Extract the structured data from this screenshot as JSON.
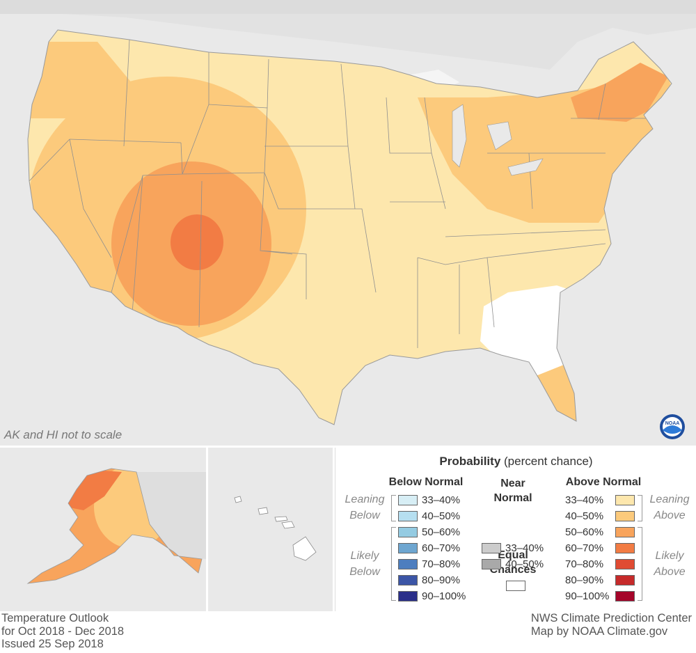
{
  "map": {
    "scale_note": "AK and HI not to scale",
    "logo_text": "NOAA"
  },
  "legend": {
    "title_bold": "Probability",
    "title_rest": " (percent chance)",
    "below": {
      "heading": "Below Normal",
      "leaning_label": [
        "Leaning",
        "Below"
      ],
      "likely_label": [
        "Likely",
        "Below"
      ],
      "ranges": [
        "33–40%",
        "40–50%",
        "50–60%",
        "60–70%",
        "70–80%",
        "80–90%",
        "90–100%"
      ],
      "colors": [
        "#d7eef5",
        "#b6dff0",
        "#94cbe2",
        "#6ea6d0",
        "#4d7ebf",
        "#3b55a6",
        "#2b2f8a"
      ]
    },
    "near": {
      "heading": [
        "Near",
        "Normal"
      ],
      "ranges": [
        "33–40%",
        "40–50%"
      ],
      "colors": [
        "#cccccc",
        "#a9a9a9"
      ]
    },
    "equal": {
      "heading": [
        "Equal",
        "Chances"
      ],
      "color": "#ffffff"
    },
    "above": {
      "heading": "Above Normal",
      "leaning_label": [
        "Leaning",
        "Above"
      ],
      "likely_label": [
        "Likely",
        "Above"
      ],
      "ranges": [
        "33–40%",
        "40–50%",
        "50–60%",
        "60–70%",
        "70–80%",
        "80–90%",
        "90–100%"
      ],
      "colors": [
        "#fde7ad",
        "#fcca7c",
        "#f8a45c",
        "#f27c44",
        "#e04b33",
        "#c62a2a",
        "#a5052a"
      ]
    }
  },
  "footer": {
    "left": [
      "Temperature Outlook",
      "for Oct 2018 - Dec 2018",
      "Issued 25 Sep 2018"
    ],
    "right": [
      "NWS Climate Prediction Center",
      "Map by NOAA Climate.gov"
    ]
  }
}
